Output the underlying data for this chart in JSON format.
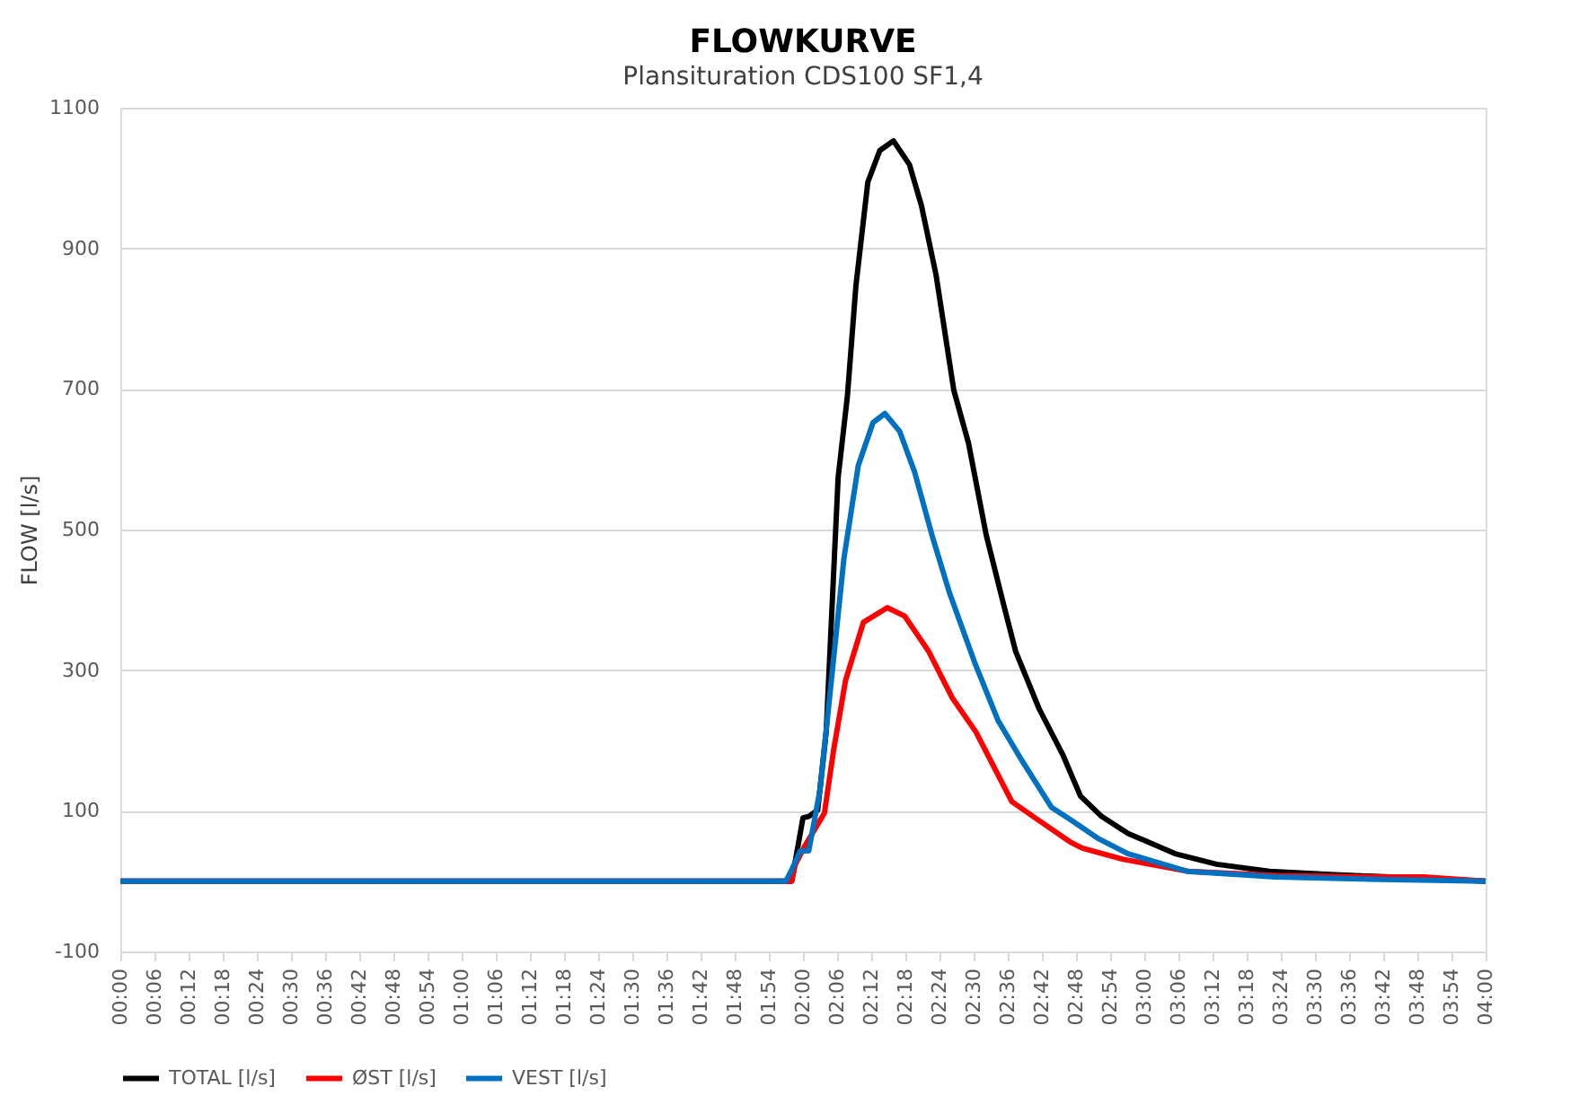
{
  "chart_data": {
    "type": "line",
    "title": "FLOWKURVE",
    "subtitle": "Plansituration CDS100 SF1,4",
    "ylabel": "FLOW [l/s]",
    "xlim": [
      0,
      4
    ],
    "ylim": [
      -100,
      1100
    ],
    "yticks": [
      -100,
      100,
      300,
      500,
      700,
      900,
      1100
    ],
    "xticks": [
      {
        "value": 0,
        "label": "00:00"
      },
      {
        "value": 0.1,
        "label": "00:06"
      },
      {
        "value": 0.2,
        "label": "00:12"
      },
      {
        "value": 0.3,
        "label": "00:18"
      },
      {
        "value": 0.4,
        "label": "00:24"
      },
      {
        "value": 0.5,
        "label": "00:30"
      },
      {
        "value": 0.6,
        "label": "00:36"
      },
      {
        "value": 0.7,
        "label": "00:42"
      },
      {
        "value": 0.8,
        "label": "00:48"
      },
      {
        "value": 0.9,
        "label": "00:54"
      },
      {
        "value": 1,
        "label": "01:00"
      },
      {
        "value": 1.1,
        "label": "01:06"
      },
      {
        "value": 1.2,
        "label": "01:12"
      },
      {
        "value": 1.3,
        "label": "01:18"
      },
      {
        "value": 1.4,
        "label": "01:24"
      },
      {
        "value": 1.5,
        "label": "01:30"
      },
      {
        "value": 1.6,
        "label": "01:36"
      },
      {
        "value": 1.7,
        "label": "01:42"
      },
      {
        "value": 1.8,
        "label": "01:48"
      },
      {
        "value": 1.9,
        "label": "01:54"
      },
      {
        "value": 2,
        "label": "02:00"
      },
      {
        "value": 2.1,
        "label": "02:06"
      },
      {
        "value": 2.2,
        "label": "02:12"
      },
      {
        "value": 2.3,
        "label": "02:18"
      },
      {
        "value": 2.4,
        "label": "02:24"
      },
      {
        "value": 2.5,
        "label": "02:30"
      },
      {
        "value": 2.6,
        "label": "02:36"
      },
      {
        "value": 2.7,
        "label": "02:42"
      },
      {
        "value": 2.8,
        "label": "02:48"
      },
      {
        "value": 2.9,
        "label": "02:54"
      },
      {
        "value": 3,
        "label": "03:00"
      },
      {
        "value": 3.1,
        "label": "03:06"
      },
      {
        "value": 3.2,
        "label": "03:12"
      },
      {
        "value": 3.3,
        "label": "03:18"
      },
      {
        "value": 3.4,
        "label": "03:24"
      },
      {
        "value": 3.5,
        "label": "03:30"
      },
      {
        "value": 3.6,
        "label": "03:36"
      },
      {
        "value": 3.7,
        "label": "03:42"
      },
      {
        "value": 3.8,
        "label": "03:48"
      },
      {
        "value": 3.9,
        "label": "03:54"
      },
      {
        "value": 4,
        "label": "04:00"
      }
    ],
    "grid": "y",
    "legend": "bottom",
    "marker": "none",
    "line_style": "solid",
    "series": [
      {
        "name": "TOTAL [l/s]",
        "color": "#000000",
        "x": [
          0,
          1.967,
          2.0,
          2.017,
          2.043,
          2.068,
          2.103,
          2.13,
          2.155,
          2.19,
          2.225,
          2.265,
          2.312,
          2.347,
          2.39,
          2.442,
          2.485,
          2.537,
          2.588,
          2.623,
          2.692,
          2.762,
          2.813,
          2.875,
          2.952,
          3.09,
          3.212,
          3.367,
          3.558,
          3.817,
          4
        ],
        "values": [
          0,
          0,
          90,
          92,
          101,
          212,
          574,
          689,
          846,
          994,
          1039,
          1053,
          1019,
          961,
          862,
          698,
          623,
          492,
          393,
          327,
          245,
          179,
          121,
          92,
          68,
          39,
          24,
          14,
          9,
          4,
          0
        ]
      },
      {
        "name": "ØST [l/s]",
        "color": "#ff0000",
        "x": [
          0,
          1.967,
          1.977,
          2.002,
          2.063,
          2.09,
          2.125,
          2.177,
          2.247,
          2.298,
          2.368,
          2.437,
          2.507,
          2.56,
          2.612,
          2.698,
          2.782,
          2.818,
          2.938,
          3.13,
          3.39,
          3.65,
          3.817,
          4
        ],
        "values": [
          0,
          0,
          23,
          47,
          97,
          187,
          286,
          368,
          389,
          377,
          327,
          261,
          212,
          162,
          113,
          84,
          56,
          47,
          31,
          14,
          8,
          6,
          6,
          0
        ]
      },
      {
        "name": "VEST [l/s]",
        "color": "#0070c0",
        "x": [
          0,
          1.95,
          1.965,
          1.992,
          2.017,
          2.05,
          2.085,
          2.12,
          2.162,
          2.205,
          2.24,
          2.283,
          2.327,
          2.378,
          2.43,
          2.503,
          2.572,
          2.642,
          2.728,
          2.782,
          2.867,
          2.952,
          3.125,
          3.383,
          3.73,
          4
        ],
        "values": [
          0,
          0,
          14,
          43,
          43,
          130,
          294,
          459,
          591,
          652,
          665,
          640,
          582,
          492,
          409,
          311,
          228,
          171,
          105,
          88,
          60,
          39,
          14,
          6,
          2,
          0
        ]
      }
    ]
  }
}
